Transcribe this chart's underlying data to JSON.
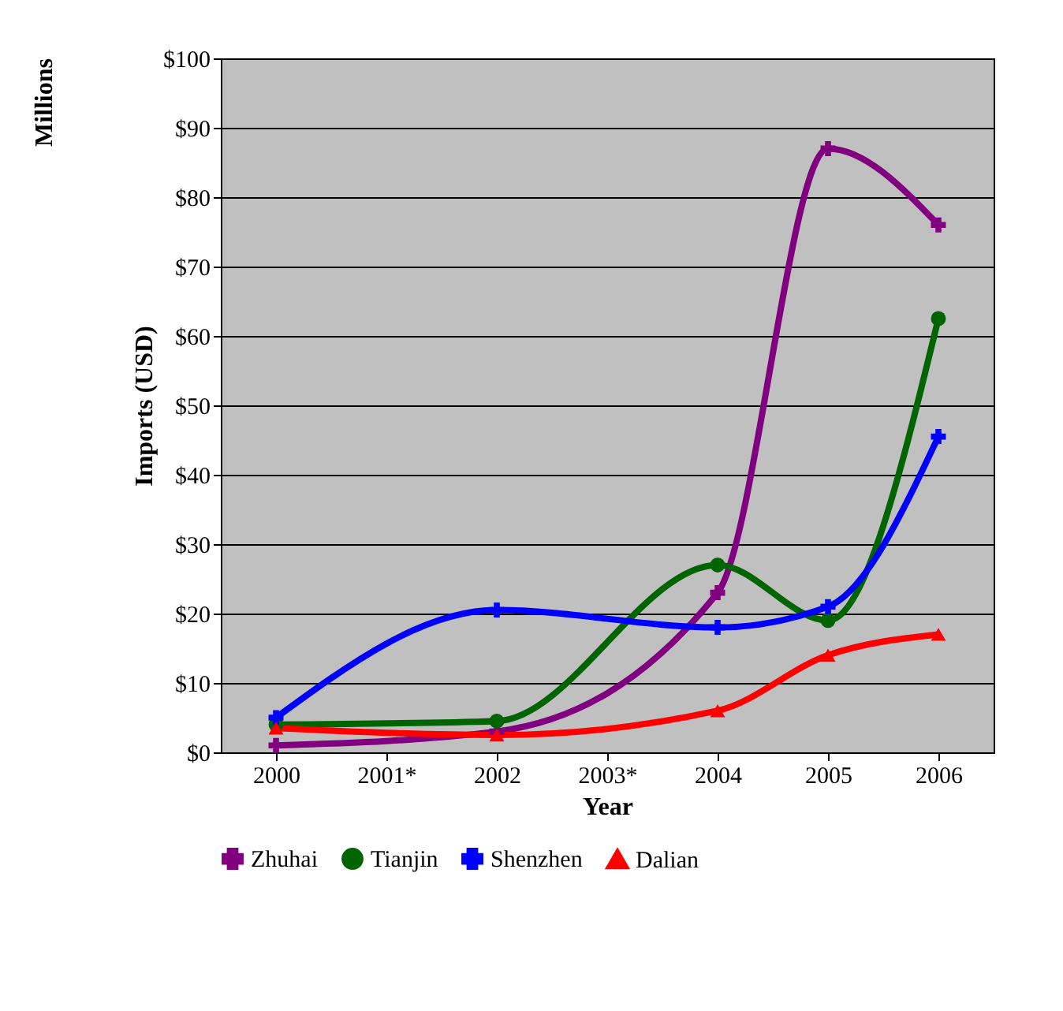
{
  "chart_data": {
    "type": "line",
    "xlabel": "Year",
    "ylabel": "Imports (USD)",
    "annotations": [
      "Millions"
    ],
    "categories": [
      "2000",
      "2001*",
      "2002",
      "2003*",
      "2004",
      "2005",
      "2006"
    ],
    "series": [
      {
        "name": "Zhuhai",
        "color": "#800080",
        "marker": "cross",
        "values": [
          1,
          null,
          3,
          null,
          23,
          87,
          76
        ]
      },
      {
        "name": "Tianjin",
        "color": "#006400",
        "marker": "circle",
        "values": [
          4,
          null,
          4.5,
          null,
          27,
          19,
          62.5
        ]
      },
      {
        "name": "Shenzhen",
        "color": "#0000ff",
        "marker": "cross",
        "values": [
          5,
          null,
          20.5,
          null,
          18,
          21,
          45.5
        ]
      },
      {
        "name": "Dalian",
        "color": "#ff0000",
        "marker": "triangle",
        "values": [
          3.5,
          null,
          2.5,
          null,
          6,
          14,
          17
        ]
      }
    ],
    "ylim": [
      0,
      100
    ],
    "yticks": [
      {
        "value": 0,
        "label": "$0"
      },
      {
        "value": 10,
        "label": "$10"
      },
      {
        "value": 20,
        "label": "$20"
      },
      {
        "value": 30,
        "label": "$30"
      },
      {
        "value": 40,
        "label": "$40"
      },
      {
        "value": 50,
        "label": "$50"
      },
      {
        "value": 60,
        "label": "$60"
      },
      {
        "value": 70,
        "label": "$70"
      },
      {
        "value": 80,
        "label": "$80"
      },
      {
        "value": 90,
        "label": "$90"
      },
      {
        "value": 100,
        "label": "$100"
      }
    ],
    "grid": "y",
    "legend": "bottom"
  }
}
